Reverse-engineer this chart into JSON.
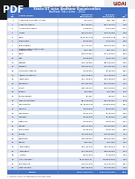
{
  "title_main": "Unique Identification Authority of India",
  "title_table": "State/UT wise Aadhaar Enumeration",
  "subtitle": "Aadhaar Saturation - 2022",
  "header_color": "#4472C4",
  "alt_row_color": "#D9E2F3",
  "white_row_color": "#FFFFFF",
  "header_text_color": "#FFFFFF",
  "rows": [
    [
      "1",
      "Andaman & Nicobar Islands",
      "3,97,614",
      "3,56,789",
      "89.7"
    ],
    [
      "2",
      "Andhra Pradesh",
      "5,31,44,082",
      "5,04,16,278",
      "94.9"
    ],
    [
      "3",
      "Arunachal Pradesh",
      "17,39,126",
      "11,51,394",
      "66.2"
    ],
    [
      "4",
      "Assam",
      "3,54,07,292",
      "2,96,60,350",
      "83.8"
    ],
    [
      "5",
      "Bihar",
      "12,37,92,310",
      "10,68,91,578",
      "86.3"
    ],
    [
      "6",
      "Chandigarh",
      "12,55,450",
      "11,24,195",
      "89.5"
    ],
    [
      "7",
      "Chhattisgarh",
      "3,04,72,786",
      "2,66,24,780",
      "87.4"
    ],
    [
      "8",
      "Dadra & Nagar Haveli and\nDaman & Diu",
      "6,13,786",
      "5,32,177",
      "86.7"
    ],
    [
      "9",
      "Delhi",
      "2,06,81,986",
      "1,97,52,345",
      "95.5"
    ],
    [
      "10",
      "Goa",
      "15,58,834",
      "14,26,789",
      "91.5"
    ],
    [
      "11",
      "Gujarat",
      "7,05,43,350",
      "6,54,89,234",
      "92.8"
    ],
    [
      "12",
      "Haryana",
      "2,98,02,406",
      "2,72,36,789",
      "91.4"
    ],
    [
      "13",
      "Himachal Pradesh",
      "74,63,980",
      "69,45,234",
      "93.1"
    ],
    [
      "14",
      "Jammu & Kashmir",
      "1,39,01,890",
      "1,21,45,678",
      "87.4"
    ],
    [
      "15",
      "Jharkhand",
      "3,97,14,024",
      "3,30,45,678",
      "83.2"
    ],
    [
      "16",
      "Karnataka",
      "6,94,99,234",
      "6,42,34,567",
      "92.4"
    ],
    [
      "17",
      "Kerala",
      "3,52,99,302",
      "3,38,45,678",
      "95.9"
    ],
    [
      "18",
      "Ladakh",
      "2,95,898",
      "2,23,456",
      "75.5"
    ],
    [
      "19",
      "Lakshadweep",
      "70,456",
      "61,234",
      "86.9"
    ],
    [
      "20",
      "Madhya Pradesh",
      "8,57,02,234",
      "7,52,34,567",
      "87.8"
    ],
    [
      "21",
      "Maharashtra",
      "12,78,56,234",
      "11,98,34,567",
      "93.7"
    ],
    [
      "22",
      "Manipur",
      "31,04,518",
      "22,34,567",
      "72.0"
    ],
    [
      "23",
      "Meghalaya",
      "34,65,234",
      "22,45,678",
      "64.8"
    ],
    [
      "24",
      "Mizoram",
      "12,45,678",
      "10,45,678",
      "83.9"
    ],
    [
      "25",
      "Nagaland",
      "22,34,567",
      "14,56,789",
      "65.2"
    ],
    [
      "26",
      "Odisha",
      "4,59,11,234",
      "4,04,34,567",
      "88.1"
    ],
    [
      "27",
      "Puducherry",
      "16,45,678",
      "14,56,789",
      "88.5"
    ],
    [
      "28",
      "Punjab",
      "3,04,56,234",
      "2,79,34,567",
      "91.7"
    ],
    [
      "29",
      "Rajasthan",
      "7,88,34,567",
      "6,98,23,456",
      "88.6"
    ],
    [
      "30",
      "Sikkim",
      "6,78,234",
      "6,12,345",
      "90.3"
    ],
    [
      "31",
      "Tamil Nadu",
      "7,90,12,234",
      "7,32,45,678",
      "92.7"
    ],
    [
      "32",
      "Telangana",
      "3,77,56,234",
      "3,60,34,567",
      "95.4"
    ],
    [
      "33",
      "Tripura",
      "40,91,234",
      "37,45,678",
      "91.5"
    ],
    [
      "34",
      "Uttar Pradesh",
      "23,47,56,234",
      "18,98,34,567",
      "80.9"
    ],
    [
      "35",
      "Uttarakhand",
      "1,18,67,234",
      "1,04,56,789",
      "88.1"
    ],
    [
      "36",
      "West Bengal",
      "9,83,45,678",
      "9,04,56,789",
      "92.0"
    ]
  ],
  "total_row": [
    "TOTAL",
    "",
    "1,37,17,00,000",
    "1,28,99,44,567",
    "94.0"
  ],
  "footer": "* Census 2011 projected to Current Year",
  "bg_color": "#FFFFFF"
}
